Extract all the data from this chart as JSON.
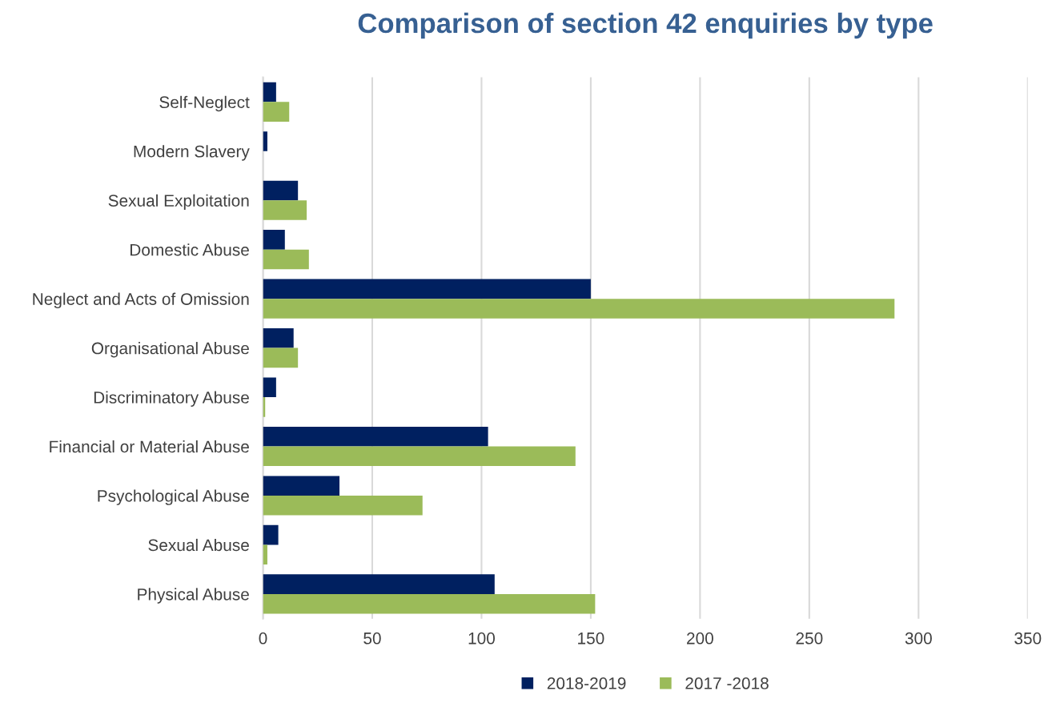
{
  "chart_data": {
    "type": "bar",
    "orientation": "horizontal",
    "title": "Comparison of section 42 enquiries by type",
    "categories": [
      "Self-Neglect",
      "Modern Slavery",
      "Sexual Exploitation",
      "Domestic Abuse",
      "Neglect and Acts of Omission",
      "Organisational Abuse",
      "Discriminatory Abuse",
      "Financial or Material Abuse",
      "Psychological Abuse",
      "Sexual Abuse",
      "Physical Abuse"
    ],
    "series": [
      {
        "name": "2018-2019",
        "color": "#002060",
        "values": [
          6,
          2,
          16,
          10,
          150,
          14,
          6,
          103,
          35,
          7,
          106
        ]
      },
      {
        "name": "2017 -2018",
        "color": "#9bbb59",
        "values": [
          12,
          0,
          20,
          21,
          289,
          16,
          1,
          143,
          73,
          2,
          152
        ]
      }
    ],
    "xlim": [
      0,
      350
    ],
    "xticks": [
      0,
      50,
      100,
      150,
      200,
      250,
      300,
      350
    ],
    "grid": "x",
    "legend": "bottom"
  }
}
